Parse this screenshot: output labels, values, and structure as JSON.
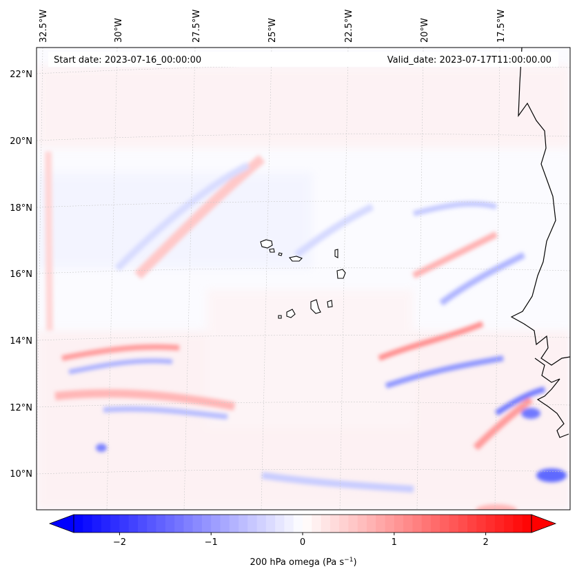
{
  "map": {
    "start_date": "Start date: 2023-07-16_00:00:00",
    "valid_date": "Valid_date: 2023-07-17T11:00:00.00",
    "lon_labels": [
      "32.5°W",
      "30°W",
      "27.5°W",
      "25°W",
      "22.5°W",
      "20°W",
      "17.5°W"
    ],
    "lat_labels": [
      "22°N",
      "20°N",
      "18°N",
      "16°N",
      "14°N",
      "12°N",
      "10°N"
    ],
    "field": "200 hPa omega",
    "colormap": "bwr",
    "colors": {
      "negative": "#0000ff",
      "zero": "#ffffff",
      "positive": "#ff0000",
      "coast": "#000000",
      "grid": "#bbbbbb"
    }
  },
  "colorbar": {
    "label_text": "200 hPa omega (Pa s",
    "label_sup": "−1",
    "label_close": ")",
    "ticks": [
      "−2",
      "−1",
      "0",
      "1",
      "2"
    ],
    "tick_values": [
      -2,
      -1,
      0,
      1,
      2
    ],
    "range": [
      -2.5,
      2.5
    ],
    "extend": "both"
  }
}
